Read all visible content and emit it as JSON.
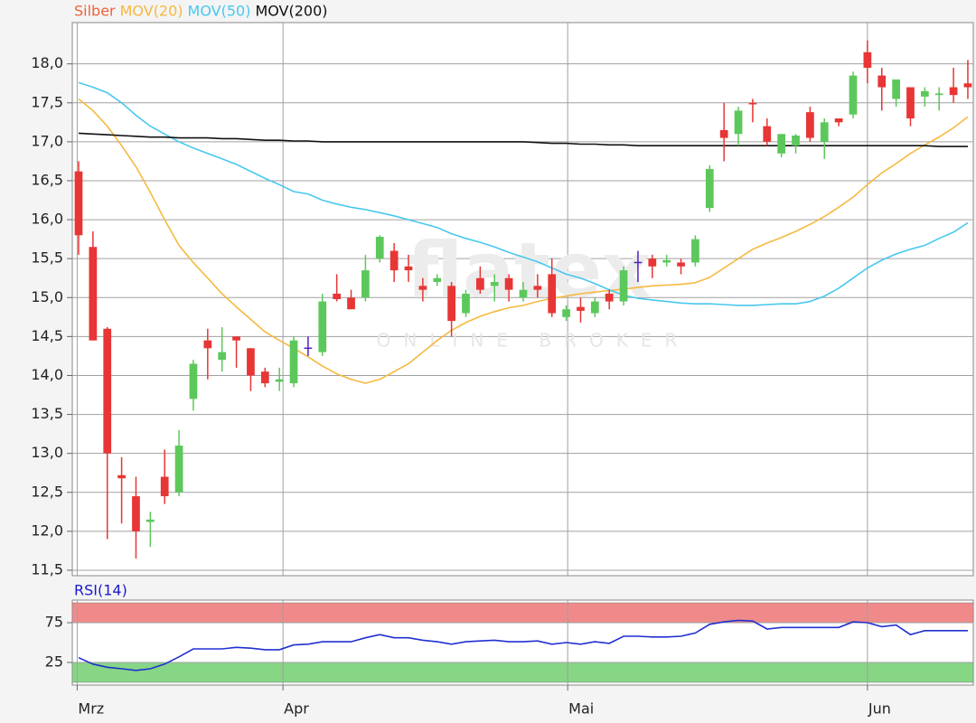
{
  "chart_data": [
    {
      "type": "candlestick",
      "name": "Silber",
      "name_color": "#f0623a",
      "up_color": "#5cc85c",
      "down_color": "#e83535",
      "doji_color": "#5020c0",
      "watermark": "flatex",
      "watermark_sub": "ONLINE BROKER",
      "open": [
        16.62,
        15.65,
        14.6,
        12.72,
        12.45,
        12.12,
        12.7,
        12.5,
        13.7,
        14.45,
        14.2,
        14.5,
        14.35,
        14.05,
        13.92,
        13.9,
        14.35,
        14.3,
        15.05,
        15.0,
        15.0,
        15.5,
        15.6,
        15.4,
        15.15,
        15.2,
        15.15,
        14.8,
        15.25,
        15.15,
        15.25,
        15.0,
        15.15,
        15.3,
        14.75,
        14.88,
        14.8,
        15.05,
        14.95,
        15.45,
        15.5,
        15.45,
        15.45,
        15.45,
        16.15,
        17.15,
        17.1,
        17.5,
        17.2,
        16.85,
        16.95,
        17.38,
        17.0,
        17.3,
        17.35,
        18.15,
        17.85,
        17.55,
        17.7,
        17.58,
        17.6,
        17.7,
        17.75
      ],
      "high": [
        16.75,
        15.85,
        14.62,
        12.95,
        12.7,
        12.25,
        13.05,
        13.3,
        14.2,
        14.6,
        14.62,
        14.5,
        14.35,
        14.1,
        14.1,
        14.5,
        14.5,
        15.05,
        15.3,
        15.1,
        15.55,
        15.8,
        15.7,
        15.55,
        15.25,
        15.3,
        15.2,
        15.1,
        15.4,
        15.3,
        15.3,
        15.2,
        15.3,
        15.5,
        14.9,
        15.0,
        15.0,
        15.1,
        15.4,
        15.6,
        15.55,
        15.55,
        15.5,
        15.8,
        16.7,
        17.5,
        17.45,
        17.55,
        17.3,
        17.1,
        17.1,
        17.45,
        17.3,
        17.3,
        17.9,
        18.3,
        17.95,
        17.8,
        17.7,
        17.7,
        17.7,
        17.95,
        18.05
      ],
      "low": [
        15.55,
        14.45,
        11.9,
        12.1,
        11.65,
        11.8,
        12.35,
        12.45,
        13.55,
        13.95,
        14.05,
        14.1,
        13.8,
        13.85,
        13.8,
        13.85,
        14.25,
        14.25,
        14.95,
        14.85,
        14.95,
        15.45,
        15.2,
        15.2,
        14.95,
        15.15,
        14.5,
        14.75,
        15.05,
        14.95,
        14.95,
        14.95,
        15.0,
        14.75,
        14.7,
        14.68,
        14.75,
        14.85,
        14.9,
        15.2,
        15.25,
        15.4,
        15.3,
        15.4,
        16.1,
        16.75,
        16.95,
        17.25,
        16.95,
        16.8,
        16.85,
        17.0,
        16.78,
        17.2,
        17.3,
        17.75,
        17.4,
        17.45,
        17.2,
        17.45,
        17.4,
        17.5,
        17.55
      ],
      "close": [
        15.8,
        14.45,
        13.0,
        12.68,
        12.0,
        12.15,
        12.45,
        13.1,
        14.15,
        14.35,
        14.3,
        14.45,
        14.0,
        13.9,
        13.95,
        14.45,
        14.35,
        14.95,
        14.98,
        14.85,
        15.35,
        15.78,
        15.35,
        15.35,
        15.1,
        15.25,
        14.7,
        15.05,
        15.1,
        15.2,
        15.1,
        15.1,
        15.1,
        14.8,
        14.85,
        14.83,
        14.95,
        14.95,
        15.35,
        15.45,
        15.4,
        15.48,
        15.4,
        15.75,
        16.65,
        17.05,
        17.4,
        17.48,
        17.0,
        17.1,
        17.08,
        17.05,
        17.25,
        17.25,
        17.85,
        17.95,
        17.7,
        17.8,
        17.3,
        17.65,
        17.62,
        17.6,
        17.7
      ],
      "series": [
        {
          "name": "MOV(20)",
          "color": "#f5b940",
          "values": [
            17.55,
            17.4,
            17.2,
            16.95,
            16.68,
            16.35,
            16.0,
            15.67,
            15.45,
            15.25,
            15.05,
            14.88,
            14.72,
            14.56,
            14.45,
            14.35,
            14.24,
            14.12,
            14.02,
            13.95,
            13.9,
            13.95,
            14.05,
            14.15,
            14.3,
            14.45,
            14.58,
            14.68,
            14.76,
            14.82,
            14.87,
            14.9,
            14.95,
            14.99,
            15.02,
            15.05,
            15.07,
            15.09,
            15.11,
            15.13,
            15.15,
            15.16,
            15.17,
            15.19,
            15.26,
            15.38,
            15.5,
            15.62,
            15.7,
            15.77,
            15.85,
            15.94,
            16.04,
            16.16,
            16.29,
            16.45,
            16.6,
            16.72,
            16.85,
            16.96,
            17.06,
            17.18,
            17.32
          ]
        },
        {
          "name": "MOV(50)",
          "color": "#48c8f0",
          "values": [
            17.76,
            17.7,
            17.63,
            17.5,
            17.34,
            17.2,
            17.1,
            17.0,
            16.92,
            16.85,
            16.78,
            16.71,
            16.62,
            16.53,
            16.45,
            16.36,
            16.33,
            16.25,
            16.2,
            16.16,
            16.13,
            16.09,
            16.05,
            16.0,
            15.95,
            15.9,
            15.82,
            15.76,
            15.71,
            15.65,
            15.58,
            15.52,
            15.46,
            15.38,
            15.3,
            15.25,
            15.18,
            15.1,
            15.03,
            14.99,
            14.97,
            14.95,
            14.93,
            14.92,
            14.92,
            14.91,
            14.9,
            14.9,
            14.91,
            14.92,
            14.92,
            14.95,
            15.02,
            15.12,
            15.25,
            15.38,
            15.48,
            15.56,
            15.62,
            15.67,
            15.76,
            15.84,
            15.96
          ]
        },
        {
          "name": "MOV(200)",
          "color": "#111111",
          "values": [
            17.11,
            17.1,
            17.09,
            17.08,
            17.07,
            17.06,
            17.06,
            17.05,
            17.05,
            17.05,
            17.04,
            17.04,
            17.03,
            17.02,
            17.02,
            17.01,
            17.01,
            17.0,
            17.0,
            17.0,
            17.0,
            17.0,
            17.0,
            17.0,
            17.0,
            17.0,
            17.0,
            17.0,
            17.0,
            17.0,
            17.0,
            17.0,
            16.99,
            16.98,
            16.98,
            16.97,
            16.97,
            16.96,
            16.96,
            16.95,
            16.95,
            16.95,
            16.95,
            16.95,
            16.95,
            16.95,
            16.95,
            16.95,
            16.95,
            16.95,
            16.95,
            16.95,
            16.95,
            16.95,
            16.95,
            16.95,
            16.95,
            16.95,
            16.95,
            16.95,
            16.94,
            16.94,
            16.94
          ]
        }
      ],
      "ylim": [
        11.43,
        18.53
      ],
      "yticks": [
        {
          "value": 11.5,
          "label": "11,5"
        },
        {
          "value": 12,
          "label": "12,0"
        },
        {
          "value": 12.5,
          "label": "12,5"
        },
        {
          "value": 13,
          "label": "13,0"
        },
        {
          "value": 13.5,
          "label": "13,5"
        },
        {
          "value": 14,
          "label": "14,0"
        },
        {
          "value": 14.5,
          "label": "14,5"
        },
        {
          "value": 15,
          "label": "15,0"
        },
        {
          "value": 15.5,
          "label": "15,5"
        },
        {
          "value": 16,
          "label": "16,0"
        },
        {
          "value": 16.5,
          "label": "16,5"
        },
        {
          "value": 17,
          "label": "17,0"
        },
        {
          "value": 17.5,
          "label": "17,5"
        },
        {
          "value": 18,
          "label": "18,0"
        }
      ],
      "grid": true
    },
    {
      "type": "line",
      "title": "RSI(14)",
      "title_color": "#1a1acc",
      "series": [
        {
          "name": "RSI(14)",
          "color": "#2030d0",
          "values": [
            31,
            23,
            19,
            17,
            15,
            17,
            23,
            32,
            42,
            42,
            42,
            44,
            43,
            41,
            41,
            47,
            48,
            51,
            51,
            51,
            56,
            60,
            56,
            56,
            53,
            51,
            48,
            51,
            52,
            53,
            51,
            51,
            52,
            48,
            50,
            48,
            51,
            49,
            58,
            58,
            57,
            57,
            58,
            62,
            73,
            76,
            78,
            77,
            67,
            69,
            69,
            69,
            69,
            69,
            76,
            75,
            70,
            72,
            60,
            65,
            65,
            65,
            65
          ]
        }
      ],
      "bands": [
        {
          "from": 75,
          "to": 100,
          "color": "#f08a8a"
        },
        {
          "from": 0,
          "to": 25,
          "color": "#86d686"
        }
      ],
      "ylim": [
        -3.4,
        103.4
      ],
      "yticks": [
        25,
        75
      ],
      "xlim": [
        -0.44,
        62.38
      ],
      "xticks": [
        {
          "value": -0.1,
          "label": "Mrz"
        },
        {
          "value": 14.25,
          "label": "Apr"
        },
        {
          "value": 34.1,
          "label": "Mai"
        },
        {
          "value": 55,
          "label": "Jun"
        }
      ],
      "grid": true
    }
  ]
}
